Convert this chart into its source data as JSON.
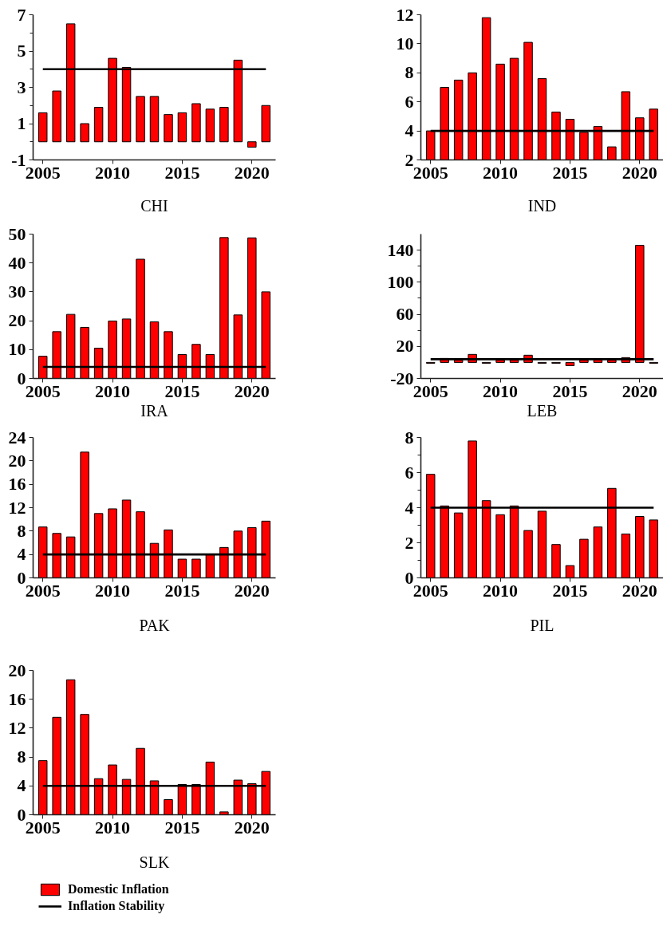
{
  "chart_data": [
    {
      "type": "bar",
      "xlabel": "CHI",
      "x": [
        2005,
        2006,
        2007,
        2008,
        2009,
        2010,
        2011,
        2012,
        2013,
        2014,
        2015,
        2016,
        2017,
        2018,
        2019,
        2020,
        2021
      ],
      "xlim": [
        2004.3,
        2021.7
      ],
      "xticks": [
        2005,
        2010,
        2015,
        2020
      ],
      "ylim": [
        -1,
        7
      ],
      "yticks": [
        -1,
        {
          "value": 0,
          "label": null
        },
        1,
        {
          "value": 2,
          "label": null
        },
        3,
        {
          "value": 4,
          "label": null
        },
        5,
        {
          "value": 6,
          "label": null
        },
        7
      ],
      "series": [
        {
          "color": "#ff0000",
          "values": [
            1.6,
            2.8,
            6.5,
            1.0,
            1.9,
            4.6,
            4.1,
            2.5,
            2.5,
            1.5,
            1.6,
            2.1,
            1.8,
            1.9,
            4.5,
            -0.3,
            2.0
          ]
        },
        {
          "type": "line",
          "color": "#000000",
          "values": [
            4,
            4,
            4,
            4,
            4,
            4,
            4,
            4,
            4,
            4,
            4,
            4,
            4,
            4,
            4,
            4,
            4
          ]
        }
      ]
    },
    {
      "type": "bar",
      "xlabel": "IND",
      "x": [
        2005,
        2006,
        2007,
        2008,
        2009,
        2010,
        2011,
        2012,
        2013,
        2014,
        2015,
        2016,
        2017,
        2018,
        2019,
        2020,
        2021
      ],
      "xlim": [
        2004.3,
        2021.7
      ],
      "xticks": [
        2005,
        2010,
        2015,
        2020
      ],
      "ylim": [
        2,
        12
      ],
      "yticks": [
        2,
        4,
        6,
        8,
        10,
        12
      ],
      "series": [
        {
          "color": "#ff0000",
          "values": [
            4.0,
            7.0,
            7.5,
            8.0,
            11.8,
            8.6,
            9.0,
            10.1,
            7.6,
            5.3,
            4.8,
            3.9,
            4.3,
            2.9,
            6.7,
            4.9,
            5.5
          ]
        },
        {
          "type": "line",
          "color": "#000000",
          "values": [
            4,
            4,
            4,
            4,
            4,
            4,
            4,
            4,
            4,
            4,
            4,
            4,
            4,
            4,
            4,
            4,
            4
          ]
        }
      ]
    },
    {
      "type": "bar",
      "xlabel": "IRA",
      "x": [
        2005,
        2006,
        2007,
        2008,
        2009,
        2010,
        2011,
        2012,
        2013,
        2014,
        2015,
        2016,
        2017,
        2018,
        2019,
        2020,
        2021
      ],
      "xlim": [
        2004.3,
        2021.7
      ],
      "xticks": [
        2005,
        2010,
        2015,
        2020
      ],
      "ylim": [
        0,
        50
      ],
      "yticks": [
        0,
        10,
        20,
        30,
        40,
        50
      ],
      "series": [
        {
          "color": "#ff0000",
          "values": [
            7.7,
            16.2,
            22.2,
            17.7,
            10.5,
            19.9,
            20.6,
            41.3,
            19.6,
            16.2,
            8.3,
            11.8,
            8.3,
            48.8,
            22.0,
            48.7,
            30.0
          ]
        },
        {
          "type": "line",
          "color": "#000000",
          "values": [
            4,
            4,
            4,
            4,
            4,
            4,
            4,
            4,
            4,
            4,
            4,
            4,
            4,
            4,
            4,
            4,
            4
          ]
        }
      ]
    },
    {
      "type": "bar",
      "xlabel": "LEB",
      "x": [
        2005,
        2006,
        2007,
        2008,
        2009,
        2010,
        2011,
        2012,
        2013,
        2014,
        2015,
        2016,
        2017,
        2018,
        2019,
        2020,
        2021
      ],
      "xlim": [
        2004.3,
        2021.7
      ],
      "xticks": [
        2005,
        2010,
        2015,
        2020
      ],
      "ylim": [
        -20,
        160
      ],
      "yticks": [
        -20,
        20,
        {
          "value": 40,
          "label": null
        },
        60,
        {
          "value": 80,
          "label": null
        },
        100,
        {
          "value": 120,
          "label": null
        },
        140
      ],
      "series": [
        {
          "color": "#ff0000",
          "values": [
            -1,
            5,
            3,
            10,
            -1,
            3,
            3,
            9,
            -1,
            -1,
            -4,
            3,
            4,
            3,
            6,
            146,
            -1
          ]
        },
        {
          "type": "line",
          "color": "#000000",
          "values": [
            4,
            4,
            4,
            4,
            4,
            4,
            4,
            4,
            4,
            4,
            4,
            4,
            4,
            4,
            4,
            4,
            4
          ]
        }
      ]
    },
    {
      "type": "bar",
      "xlabel": "PAK",
      "x": [
        2005,
        2006,
        2007,
        2008,
        2009,
        2010,
        2011,
        2012,
        2013,
        2014,
        2015,
        2016,
        2017,
        2018,
        2019,
        2020,
        2021
      ],
      "xlim": [
        2004.3,
        2021.7
      ],
      "xticks": [
        2005,
        2010,
        2015,
        2020
      ],
      "ylim": [
        0,
        24
      ],
      "yticks": [
        0,
        4,
        8,
        12,
        16,
        20,
        24
      ],
      "series": [
        {
          "color": "#ff0000",
          "values": [
            8.7,
            7.6,
            7.0,
            21.5,
            11.0,
            11.8,
            13.3,
            11.3,
            5.9,
            8.2,
            3.2,
            3.2,
            4.0,
            5.2,
            8.0,
            8.6,
            9.7
          ]
        },
        {
          "type": "line",
          "color": "#000000",
          "values": [
            4,
            4,
            4,
            4,
            4,
            4,
            4,
            4,
            4,
            4,
            4,
            4,
            4,
            4,
            4,
            4,
            4
          ]
        }
      ]
    },
    {
      "type": "bar",
      "xlabel": "PIL",
      "x": [
        2005,
        2006,
        2007,
        2008,
        2009,
        2010,
        2011,
        2012,
        2013,
        2014,
        2015,
        2016,
        2017,
        2018,
        2019,
        2020,
        2021
      ],
      "xlim": [
        2004.3,
        2021.7
      ],
      "xticks": [
        2005,
        2010,
        2015,
        2020
      ],
      "ylim": [
        0,
        8
      ],
      "yticks": [
        0,
        {
          "value": 1,
          "label": null
        },
        2,
        {
          "value": 3,
          "label": null
        },
        4,
        {
          "value": 5,
          "label": null
        },
        6,
        {
          "value": 7,
          "label": null
        },
        8
      ],
      "series": [
        {
          "color": "#ff0000",
          "values": [
            5.9,
            4.1,
            3.7,
            7.8,
            4.4,
            3.6,
            4.1,
            2.7,
            3.8,
            1.9,
            0.7,
            2.2,
            2.9,
            5.1,
            2.5,
            3.5,
            3.3
          ]
        },
        {
          "type": "line",
          "color": "#000000",
          "values": [
            4,
            4,
            4,
            4,
            4,
            4,
            4,
            4,
            4,
            4,
            4,
            4,
            4,
            4,
            4,
            4,
            4
          ]
        }
      ]
    },
    {
      "type": "bar",
      "xlabel": "SLK",
      "x": [
        2005,
        2006,
        2007,
        2008,
        2009,
        2010,
        2011,
        2012,
        2013,
        2014,
        2015,
        2016,
        2017,
        2018,
        2019,
        2020,
        2021
      ],
      "xlim": [
        2004.3,
        2021.7
      ],
      "xticks": [
        2005,
        2010,
        2015,
        2020
      ],
      "ylim": [
        0,
        20
      ],
      "yticks": [
        0,
        4,
        8,
        12,
        16,
        20
      ],
      "legend": "bottom",
      "series": [
        {
          "name": "Domestic Inflation",
          "color": "#ff0000",
          "values": [
            7.5,
            13.5,
            18.7,
            13.9,
            5.0,
            6.9,
            4.9,
            9.2,
            4.7,
            2.1,
            4.2,
            4.2,
            7.3,
            0.4,
            4.8,
            4.3,
            6.0
          ]
        },
        {
          "name": "Inflation Stability",
          "type": "line",
          "color": "#000000",
          "values": [
            4,
            4,
            4,
            4,
            4,
            4,
            4,
            4,
            4,
            4,
            4,
            4,
            4,
            4,
            4,
            4,
            4
          ]
        }
      ]
    }
  ]
}
